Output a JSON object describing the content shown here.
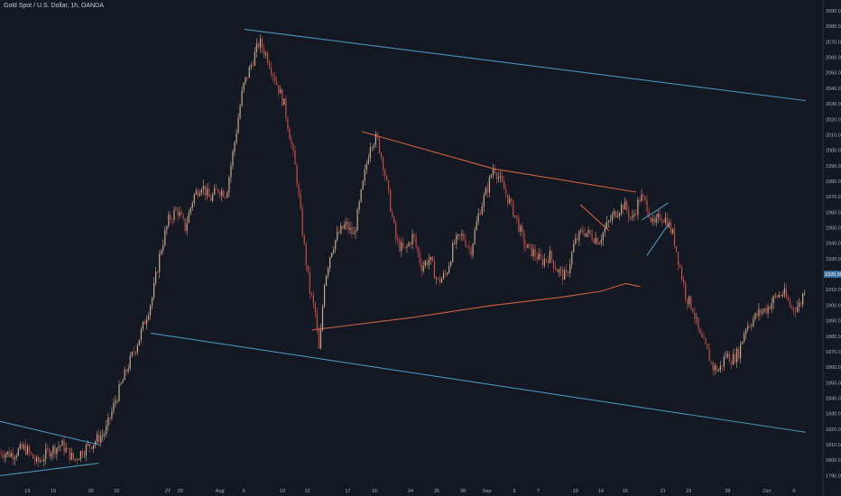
{
  "header": {
    "title": "Gold Spot / U.S. Dollar, 1h, OANDA"
  },
  "colors": {
    "background": "#141822",
    "up_candle": "#c9a98f",
    "down_candle": "#c0504a",
    "channel_line": "#4ea3c9",
    "triangle_line": "#e06a4a",
    "price_line": "#3a6e9c",
    "axis_text": "#aab0bc"
  },
  "chart_data": {
    "type": "candlestick",
    "title": "Gold Spot / U.S. Dollar, 1h, OANDA",
    "ylim": [
      1785,
      2090
    ],
    "y_ticks": [
      1790,
      1800,
      1810,
      1820,
      1830,
      1840,
      1850,
      1860,
      1870,
      1880,
      1890,
      1900,
      1910,
      1920,
      1930,
      1940,
      1950,
      1960,
      1970,
      1980,
      1990,
      2000,
      2010,
      2020,
      2030,
      2040,
      2050,
      2060,
      2070,
      2080,
      2090
    ],
    "y_tick_labels": [
      "1790.000",
      "1800.000",
      "1810.000",
      "1820.000",
      "1830.000",
      "1840.000",
      "1850.000",
      "1860.000",
      "1870.000",
      "1880.000",
      "1890.000",
      "1900.000",
      "1910.000",
      "1920.000",
      "1930.000",
      "1940.000",
      "1950.000",
      "1960.000",
      "1970.000",
      "1980.000",
      "1990.000",
      "2000.000",
      "2010.000",
      "2020.000",
      "2030.000",
      "2040.000",
      "2050.000",
      "2060.000",
      "2070.000",
      "2080.000",
      "2090.000"
    ],
    "x_labels": [
      "13",
      "15",
      "20",
      "22",
      "27",
      "29",
      "Aug",
      "5",
      "10",
      "12",
      "17",
      "19",
      "24",
      "26",
      "28",
      "Sep",
      "3",
      "7",
      "10",
      "14",
      "16",
      "21",
      "23",
      "28",
      "Oct",
      "5"
    ],
    "x_label_positions": [
      0.0333,
      0.0649,
      0.1104,
      0.1418,
      0.204,
      0.2189,
      0.2672,
      0.2962,
      0.3433,
      0.3734,
      0.4227,
      0.4549,
      0.4989,
      0.5306,
      0.5625,
      0.5918,
      0.6249,
      0.6539,
      0.6991,
      0.7302,
      0.7596,
      0.8057,
      0.8369,
      0.8842,
      0.9318,
      0.965
    ],
    "price_path": [
      [
        0.0,
        1805
      ],
      [
        0.015,
        1804
      ],
      [
        0.03,
        1808
      ],
      [
        0.045,
        1798
      ],
      [
        0.06,
        1806
      ],
      [
        0.075,
        1810
      ],
      [
        0.09,
        1800
      ],
      [
        0.1,
        1806
      ],
      [
        0.115,
        1812
      ],
      [
        0.128,
        1818
      ],
      [
        0.14,
        1838
      ],
      [
        0.155,
        1860
      ],
      [
        0.17,
        1880
      ],
      [
        0.185,
        1905
      ],
      [
        0.195,
        1935
      ],
      [
        0.205,
        1955
      ],
      [
        0.215,
        1962
      ],
      [
        0.225,
        1950
      ],
      [
        0.235,
        1970
      ],
      [
        0.245,
        1978
      ],
      [
        0.255,
        1968
      ],
      [
        0.265,
        1975
      ],
      [
        0.275,
        1972
      ],
      [
        0.285,
        2005
      ],
      [
        0.295,
        2040
      ],
      [
        0.305,
        2055
      ],
      [
        0.315,
        2070
      ],
      [
        0.325,
        2060
      ],
      [
        0.335,
        2045
      ],
      [
        0.345,
        2030
      ],
      [
        0.352,
        2010
      ],
      [
        0.36,
        1985
      ],
      [
        0.368,
        1945
      ],
      [
        0.376,
        1910
      ],
      [
        0.383,
        1895
      ],
      [
        0.388,
        1868
      ],
      [
        0.394,
        1915
      ],
      [
        0.402,
        1935
      ],
      [
        0.41,
        1945
      ],
      [
        0.42,
        1952
      ],
      [
        0.43,
        1945
      ],
      [
        0.44,
        1975
      ],
      [
        0.45,
        2005
      ],
      [
        0.458,
        2008
      ],
      [
        0.466,
        1990
      ],
      [
        0.474,
        1965
      ],
      [
        0.482,
        1940
      ],
      [
        0.492,
        1935
      ],
      [
        0.502,
        1945
      ],
      [
        0.512,
        1925
      ],
      [
        0.522,
        1930
      ],
      [
        0.532,
        1915
      ],
      [
        0.542,
        1920
      ],
      [
        0.552,
        1940
      ],
      [
        0.562,
        1945
      ],
      [
        0.572,
        1935
      ],
      [
        0.582,
        1960
      ],
      [
        0.592,
        1975
      ],
      [
        0.6,
        1990
      ],
      [
        0.608,
        1980
      ],
      [
        0.618,
        1968
      ],
      [
        0.628,
        1955
      ],
      [
        0.638,
        1938
      ],
      [
        0.648,
        1934
      ],
      [
        0.658,
        1928
      ],
      [
        0.668,
        1932
      ],
      [
        0.678,
        1922
      ],
      [
        0.688,
        1918
      ],
      [
        0.698,
        1940
      ],
      [
        0.708,
        1948
      ],
      [
        0.718,
        1945
      ],
      [
        0.728,
        1942
      ],
      [
        0.738,
        1952
      ],
      [
        0.748,
        1960
      ],
      [
        0.758,
        1965
      ],
      [
        0.768,
        1955
      ],
      [
        0.778,
        1970
      ],
      [
        0.786,
        1965
      ],
      [
        0.794,
        1950
      ],
      [
        0.802,
        1958
      ],
      [
        0.81,
        1955
      ],
      [
        0.818,
        1945
      ],
      [
        0.826,
        1925
      ],
      [
        0.834,
        1905
      ],
      [
        0.842,
        1898
      ],
      [
        0.85,
        1880
      ],
      [
        0.858,
        1872
      ],
      [
        0.866,
        1860
      ],
      [
        0.874,
        1858
      ],
      [
        0.882,
        1868
      ],
      [
        0.89,
        1865
      ],
      [
        0.898,
        1870
      ],
      [
        0.906,
        1886
      ],
      [
        0.914,
        1890
      ],
      [
        0.922,
        1895
      ],
      [
        0.932,
        1898
      ],
      [
        0.942,
        1905
      ],
      [
        0.952,
        1908
      ],
      [
        0.962,
        1898
      ],
      [
        0.972,
        1900
      ],
      [
        0.98,
        1915
      ]
    ],
    "trend_lines": [
      {
        "color": "channel_line",
        "points": [
          [
            0.297,
            2078
          ],
          [
            0.979,
            2032
          ]
        ]
      },
      {
        "color": "channel_line",
        "points": [
          [
            0.183,
            1882
          ],
          [
            0.979,
            1818
          ]
        ]
      },
      {
        "color": "channel_line",
        "points": [
          [
            0.0,
            1825
          ],
          [
            0.12,
            1810
          ]
        ]
      },
      {
        "color": "channel_line",
        "points": [
          [
            0.0,
            1790
          ],
          [
            0.12,
            1798
          ]
        ]
      },
      {
        "color": "triangle_line",
        "points": [
          [
            0.44,
            2012
          ],
          [
            0.6,
            1988
          ],
          [
            0.773,
            1973
          ]
        ]
      },
      {
        "color": "triangle_line",
        "points": [
          [
            0.379,
            1884
          ],
          [
            0.5,
            1892
          ],
          [
            0.6,
            1900
          ],
          [
            0.68,
            1905
          ],
          [
            0.73,
            1909
          ],
          [
            0.76,
            1914
          ],
          [
            0.778,
            1912
          ]
        ]
      },
      {
        "color": "triangle_line",
        "points": [
          [
            0.705,
            1965
          ],
          [
            0.74,
            1948
          ]
        ]
      },
      {
        "color": "channel_line",
        "points": [
          [
            0.78,
            1955
          ],
          [
            0.812,
            1966
          ]
        ]
      },
      {
        "color": "channel_line",
        "points": [
          [
            0.786,
            1932
          ],
          [
            0.812,
            1952
          ]
        ]
      }
    ],
    "current_price_label": "1920.000"
  }
}
